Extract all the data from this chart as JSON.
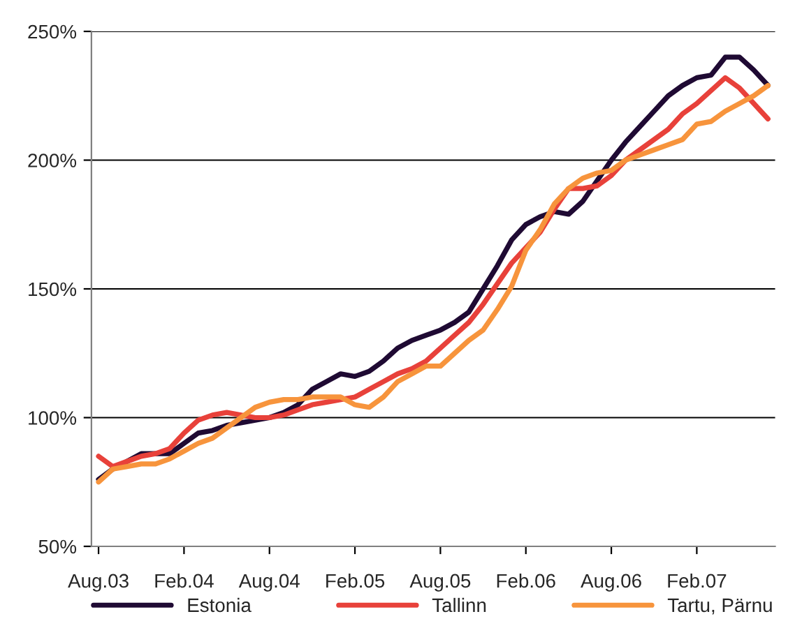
{
  "chart_data": {
    "type": "line",
    "categories": [
      "Aug.03",
      null,
      null,
      null,
      null,
      null,
      "Feb.04",
      null,
      null,
      null,
      null,
      null,
      "Aug.04",
      null,
      null,
      null,
      null,
      null,
      "Feb.05",
      null,
      null,
      null,
      null,
      null,
      "Aug.05",
      null,
      null,
      null,
      null,
      null,
      "Feb.06",
      null,
      null,
      null,
      null,
      null,
      "Aug.06",
      null,
      null,
      null,
      null,
      null,
      "Feb.07",
      null,
      null,
      null,
      null,
      null
    ],
    "series": [
      {
        "name": "Estonia",
        "color": "#1f0a33",
        "values": [
          76,
          80,
          83,
          86,
          86,
          86,
          90,
          94,
          95,
          97,
          98,
          99,
          100,
          102,
          105,
          111,
          114,
          117,
          116,
          118,
          122,
          127,
          130,
          132,
          134,
          137,
          141,
          150,
          159,
          169,
          175,
          178,
          180,
          179,
          184,
          192,
          200,
          207,
          213,
          219,
          225,
          229,
          232,
          233,
          240,
          240,
          235,
          229
        ]
      },
      {
        "name": "Tallinn",
        "color": "#e8413a",
        "values": [
          85,
          81,
          83,
          85,
          86,
          88,
          94,
          99,
          101,
          102,
          101,
          100,
          100,
          101,
          103,
          105,
          106,
          107,
          108,
          111,
          114,
          117,
          119,
          122,
          127,
          132,
          137,
          144,
          152,
          160,
          166,
          172,
          181,
          189,
          189,
          190,
          194,
          200,
          204,
          208,
          212,
          218,
          222,
          227,
          232,
          228,
          222,
          216
        ]
      },
      {
        "name": "Tartu, Pärnu",
        "color": "#f7943c",
        "values": [
          75,
          80,
          81,
          82,
          82,
          84,
          87,
          90,
          92,
          96,
          100,
          104,
          106,
          107,
          107,
          108,
          108,
          108,
          105,
          104,
          108,
          114,
          117,
          120,
          120,
          125,
          130,
          134,
          142,
          151,
          165,
          173,
          183,
          189,
          193,
          195,
          196,
          200,
          202,
          204,
          206,
          208,
          214,
          215,
          219,
          222,
          225,
          229
        ]
      }
    ],
    "ylim": [
      50,
      250
    ],
    "yticks": [
      {
        "value": 50,
        "label": "50%"
      },
      {
        "value": 100,
        "label": "100%"
      },
      {
        "value": 150,
        "label": "150%"
      },
      {
        "value": 200,
        "label": "200%"
      },
      {
        "value": 250,
        "label": "250%"
      }
    ],
    "grid": "y",
    "legend": "bottom",
    "marker": "none",
    "line_style": "solid"
  }
}
